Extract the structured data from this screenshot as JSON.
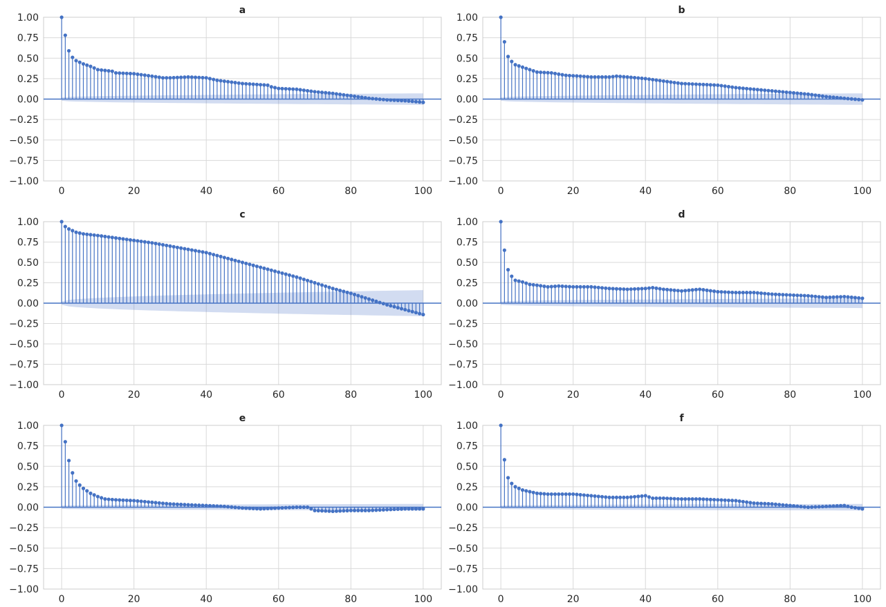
{
  "figure": {
    "colors": {
      "stem": "#4472c4",
      "band": "#4c72c9",
      "grid": "#d9d9d9",
      "text": "#262626"
    }
  },
  "chart_data": [
    {
      "type": "stem",
      "title": "a",
      "xlabel": "",
      "ylabel": "",
      "xlim": [
        -5,
        105
      ],
      "ylim": [
        -1.0,
        1.0
      ],
      "xticks": [
        0,
        20,
        40,
        60,
        80,
        100
      ],
      "xtick_labels": [
        "0",
        "20",
        "40",
        "60",
        "80",
        "100"
      ],
      "yticks": [
        1.0,
        0.75,
        0.5,
        0.25,
        0.0,
        -0.25,
        -0.5,
        -0.75,
        -1.0
      ],
      "ytick_labels": [
        "1.00",
        "0.75",
        "0.50",
        "0.25",
        "0.00",
        "−0.25",
        "−0.50",
        "−0.75",
        "−1.00"
      ],
      "grid": true,
      "confidence_band": {
        "start": 0.02,
        "end": 0.07
      },
      "anchors": [
        [
          0,
          1.0
        ],
        [
          1,
          0.78
        ],
        [
          2,
          0.59
        ],
        [
          3,
          0.51
        ],
        [
          4,
          0.47
        ],
        [
          6,
          0.43
        ],
        [
          8,
          0.4
        ],
        [
          10,
          0.36
        ],
        [
          14,
          0.34
        ],
        [
          15,
          0.32
        ],
        [
          20,
          0.31
        ],
        [
          25,
          0.28
        ],
        [
          28,
          0.26
        ],
        [
          30,
          0.26
        ],
        [
          35,
          0.27
        ],
        [
          40,
          0.26
        ],
        [
          43,
          0.23
        ],
        [
          50,
          0.19
        ],
        [
          57,
          0.17
        ],
        [
          58,
          0.15
        ],
        [
          60,
          0.13
        ],
        [
          65,
          0.12
        ],
        [
          70,
          0.09
        ],
        [
          75,
          0.07
        ],
        [
          80,
          0.04
        ],
        [
          85,
          0.01
        ],
        [
          90,
          -0.01
        ],
        [
          95,
          -0.02
        ],
        [
          100,
          -0.04
        ]
      ]
    },
    {
      "type": "stem",
      "title": "b",
      "xlabel": "",
      "ylabel": "",
      "xlim": [
        -5,
        105
      ],
      "ylim": [
        -1.0,
        1.0
      ],
      "xticks": [
        0,
        20,
        40,
        60,
        80,
        100
      ],
      "xtick_labels": [
        "0",
        "20",
        "40",
        "60",
        "80",
        "100"
      ],
      "yticks": [
        1.0,
        0.75,
        0.5,
        0.25,
        0.0,
        -0.25,
        -0.5,
        -0.75,
        -1.0
      ],
      "ytick_labels": [
        "1.00",
        "0.75",
        "0.50",
        "0.25",
        "0.00",
        "−0.25",
        "−0.50",
        "−0.75",
        "−1.00"
      ],
      "grid": true,
      "confidence_band": {
        "start": 0.02,
        "end": 0.07
      },
      "anchors": [
        [
          0,
          1.0
        ],
        [
          1,
          0.7
        ],
        [
          2,
          0.52
        ],
        [
          3,
          0.46
        ],
        [
          4,
          0.42
        ],
        [
          6,
          0.39
        ],
        [
          8,
          0.36
        ],
        [
          10,
          0.33
        ],
        [
          14,
          0.32
        ],
        [
          18,
          0.29
        ],
        [
          22,
          0.28
        ],
        [
          25,
          0.27
        ],
        [
          30,
          0.27
        ],
        [
          32,
          0.28
        ],
        [
          35,
          0.27
        ],
        [
          40,
          0.25
        ],
        [
          45,
          0.22
        ],
        [
          50,
          0.19
        ],
        [
          55,
          0.18
        ],
        [
          60,
          0.17
        ],
        [
          65,
          0.14
        ],
        [
          70,
          0.12
        ],
        [
          75,
          0.1
        ],
        [
          80,
          0.08
        ],
        [
          85,
          0.06
        ],
        [
          90,
          0.03
        ],
        [
          95,
          0.01
        ],
        [
          100,
          -0.01
        ]
      ]
    },
    {
      "type": "stem",
      "title": "c",
      "xlabel": "",
      "ylabel": "",
      "xlim": [
        -5,
        105
      ],
      "ylim": [
        -1.0,
        1.0
      ],
      "xticks": [
        0,
        20,
        40,
        60,
        80,
        100
      ],
      "xtick_labels": [
        "0",
        "20",
        "40",
        "60",
        "80",
        "100"
      ],
      "yticks": [
        1.0,
        0.75,
        0.5,
        0.25,
        0.0,
        -0.25,
        -0.5,
        -0.75,
        -1.0
      ],
      "ytick_labels": [
        "1.00",
        "0.75",
        "0.50",
        "0.25",
        "0.00",
        "−0.25",
        "−0.50",
        "−0.75",
        "−1.00"
      ],
      "grid": true,
      "confidence_band": {
        "start": 0.02,
        "end": 0.16
      },
      "anchors": [
        [
          0,
          1.0
        ],
        [
          1,
          0.94
        ],
        [
          2,
          0.91
        ],
        [
          3,
          0.89
        ],
        [
          4,
          0.87
        ],
        [
          6,
          0.85
        ],
        [
          10,
          0.83
        ],
        [
          15,
          0.8
        ],
        [
          20,
          0.77
        ],
        [
          25,
          0.74
        ],
        [
          30,
          0.7
        ],
        [
          35,
          0.66
        ],
        [
          40,
          0.62
        ],
        [
          45,
          0.56
        ],
        [
          50,
          0.5
        ],
        [
          55,
          0.44
        ],
        [
          60,
          0.38
        ],
        [
          65,
          0.32
        ],
        [
          70,
          0.25
        ],
        [
          75,
          0.18
        ],
        [
          80,
          0.12
        ],
        [
          85,
          0.05
        ],
        [
          90,
          -0.02
        ],
        [
          95,
          -0.08
        ],
        [
          100,
          -0.14
        ]
      ]
    },
    {
      "type": "stem",
      "title": "d",
      "xlabel": "",
      "ylabel": "",
      "xlim": [
        -5,
        105
      ],
      "ylim": [
        -1.0,
        1.0
      ],
      "xticks": [
        0,
        20,
        40,
        60,
        80,
        100
      ],
      "xtick_labels": [
        "0",
        "20",
        "40",
        "60",
        "80",
        "100"
      ],
      "yticks": [
        1.0,
        0.75,
        0.5,
        0.25,
        0.0,
        -0.25,
        -0.5,
        -0.75,
        -1.0
      ],
      "ytick_labels": [
        "1.00",
        "0.75",
        "0.50",
        "0.25",
        "0.00",
        "−0.25",
        "−0.50",
        "−0.75",
        "−1.00"
      ],
      "grid": true,
      "confidence_band": {
        "start": 0.02,
        "end": 0.06
      },
      "anchors": [
        [
          0,
          1.0
        ],
        [
          1,
          0.65
        ],
        [
          2,
          0.41
        ],
        [
          3,
          0.33
        ],
        [
          4,
          0.28
        ],
        [
          6,
          0.26
        ],
        [
          8,
          0.23
        ],
        [
          10,
          0.22
        ],
        [
          13,
          0.2
        ],
        [
          16,
          0.21
        ],
        [
          20,
          0.2
        ],
        [
          25,
          0.2
        ],
        [
          30,
          0.18
        ],
        [
          35,
          0.17
        ],
        [
          40,
          0.18
        ],
        [
          42,
          0.19
        ],
        [
          45,
          0.17
        ],
        [
          50,
          0.15
        ],
        [
          55,
          0.17
        ],
        [
          60,
          0.14
        ],
        [
          65,
          0.13
        ],
        [
          70,
          0.13
        ],
        [
          75,
          0.11
        ],
        [
          80,
          0.1
        ],
        [
          85,
          0.09
        ],
        [
          90,
          0.07
        ],
        [
          95,
          0.08
        ],
        [
          100,
          0.06
        ]
      ]
    },
    {
      "type": "stem",
      "title": "e",
      "xlabel": "",
      "ylabel": "",
      "xlim": [
        -5,
        105
      ],
      "ylim": [
        -1.0,
        1.0
      ],
      "xticks": [
        0,
        20,
        40,
        60,
        80,
        100
      ],
      "xtick_labels": [
        "0",
        "20",
        "40",
        "60",
        "80",
        "100"
      ],
      "yticks": [
        1.0,
        0.75,
        0.5,
        0.25,
        0.0,
        -0.25,
        -0.5,
        -0.75,
        -1.0
      ],
      "ytick_labels": [
        "1.00",
        "0.75",
        "0.50",
        "0.25",
        "0.00",
        "−0.25",
        "−0.50",
        "−0.75",
        "−1.00"
      ],
      "grid": true,
      "confidence_band": {
        "start": 0.02,
        "end": 0.04
      },
      "anchors": [
        [
          0,
          1.0
        ],
        [
          1,
          0.8
        ],
        [
          2,
          0.57
        ],
        [
          3,
          0.42
        ],
        [
          4,
          0.32
        ],
        [
          5,
          0.27
        ],
        [
          6,
          0.23
        ],
        [
          8,
          0.17
        ],
        [
          10,
          0.13
        ],
        [
          12,
          0.1
        ],
        [
          15,
          0.09
        ],
        [
          20,
          0.08
        ],
        [
          25,
          0.06
        ],
        [
          30,
          0.04
        ],
        [
          35,
          0.03
        ],
        [
          40,
          0.02
        ],
        [
          45,
          0.01
        ],
        [
          50,
          -0.01
        ],
        [
          55,
          -0.02
        ],
        [
          60,
          -0.01
        ],
        [
          65,
          0.0
        ],
        [
          68,
          0.0
        ],
        [
          70,
          -0.04
        ],
        [
          75,
          -0.05
        ],
        [
          80,
          -0.04
        ],
        [
          85,
          -0.04
        ],
        [
          90,
          -0.03
        ],
        [
          95,
          -0.02
        ],
        [
          100,
          -0.02
        ]
      ]
    },
    {
      "type": "stem",
      "title": "f",
      "xlabel": "",
      "ylabel": "",
      "xlim": [
        -5,
        105
      ],
      "ylim": [
        -1.0,
        1.0
      ],
      "xticks": [
        0,
        20,
        40,
        60,
        80,
        100
      ],
      "xtick_labels": [
        "0",
        "20",
        "40",
        "60",
        "80",
        "100"
      ],
      "yticks": [
        1.0,
        0.75,
        0.5,
        0.25,
        0.0,
        -0.25,
        -0.5,
        -0.75,
        -1.0
      ],
      "ytick_labels": [
        "1.00",
        "0.75",
        "0.50",
        "0.25",
        "0.00",
        "−0.25",
        "−0.50",
        "−0.75",
        "−1.00"
      ],
      "grid": true,
      "confidence_band": {
        "start": 0.02,
        "end": 0.04
      },
      "anchors": [
        [
          0,
          1.0
        ],
        [
          1,
          0.58
        ],
        [
          2,
          0.36
        ],
        [
          3,
          0.29
        ],
        [
          4,
          0.25
        ],
        [
          6,
          0.21
        ],
        [
          8,
          0.19
        ],
        [
          10,
          0.17
        ],
        [
          13,
          0.16
        ],
        [
          17,
          0.16
        ],
        [
          20,
          0.16
        ],
        [
          25,
          0.14
        ],
        [
          30,
          0.12
        ],
        [
          35,
          0.12
        ],
        [
          40,
          0.14
        ],
        [
          42,
          0.11
        ],
        [
          45,
          0.11
        ],
        [
          50,
          0.1
        ],
        [
          55,
          0.1
        ],
        [
          60,
          0.09
        ],
        [
          65,
          0.08
        ],
        [
          70,
          0.05
        ],
        [
          75,
          0.04
        ],
        [
          80,
          0.02
        ],
        [
          85,
          0.0
        ],
        [
          90,
          0.01
        ],
        [
          95,
          0.02
        ],
        [
          97,
          0.0
        ],
        [
          100,
          -0.02
        ]
      ]
    }
  ]
}
